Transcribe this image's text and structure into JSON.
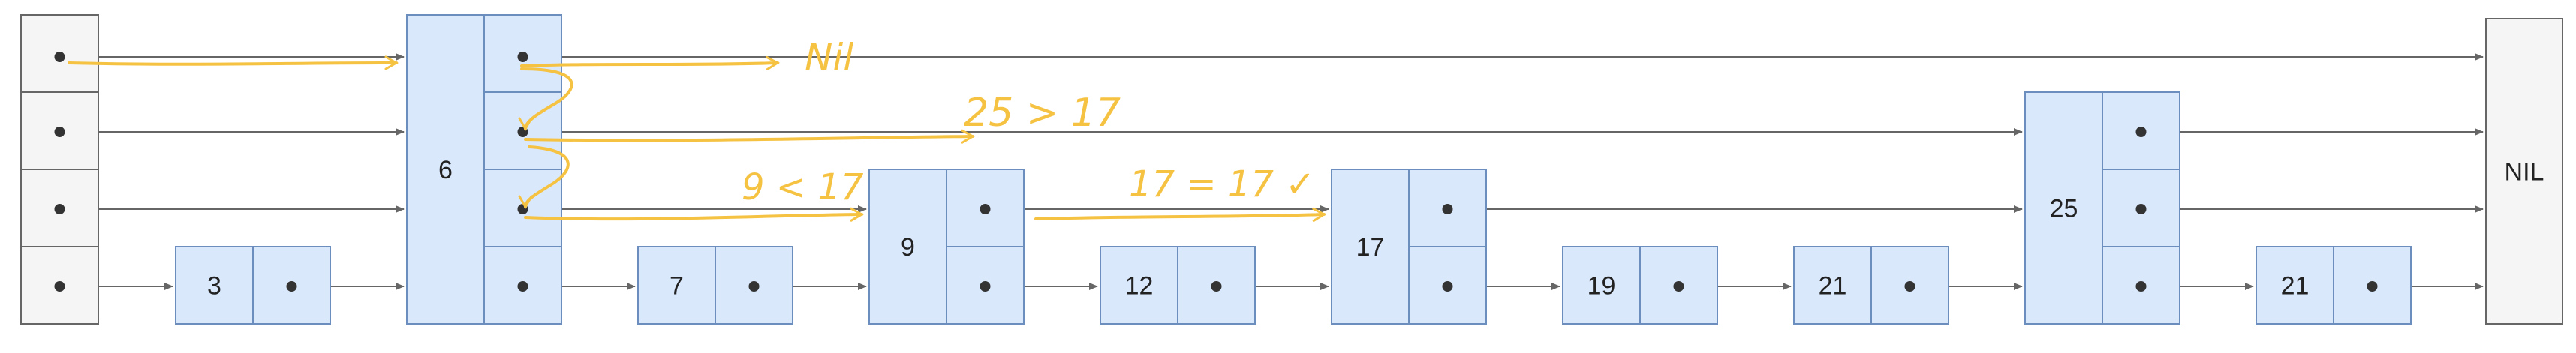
{
  "diagram": {
    "head": {
      "levels": 4
    },
    "nil": {
      "label": "NIL"
    },
    "nodes": [
      {
        "key": "3",
        "levels": 1
      },
      {
        "key": "6",
        "levels": 4
      },
      {
        "key": "7",
        "levels": 1
      },
      {
        "key": "9",
        "levels": 2
      },
      {
        "key": "12",
        "levels": 1
      },
      {
        "key": "17",
        "levels": 2
      },
      {
        "key": "19",
        "levels": 1
      },
      {
        "key": "21",
        "levels": 1
      },
      {
        "key": "25",
        "levels": 3
      },
      {
        "key": "21",
        "levels": 1
      }
    ]
  },
  "annotations": {
    "nil_note": "Nil",
    "cmp_25": "25 > 17",
    "cmp_9": "9 < 17",
    "cmp_17": "17 = 17 ✓"
  },
  "colors": {
    "node_fill": "#dae8fc",
    "node_stroke": "#6c8ebf",
    "head_fill": "#f5f5f5",
    "head_stroke": "#666666",
    "pointer": "#666666",
    "annotation": "#f5c242"
  }
}
